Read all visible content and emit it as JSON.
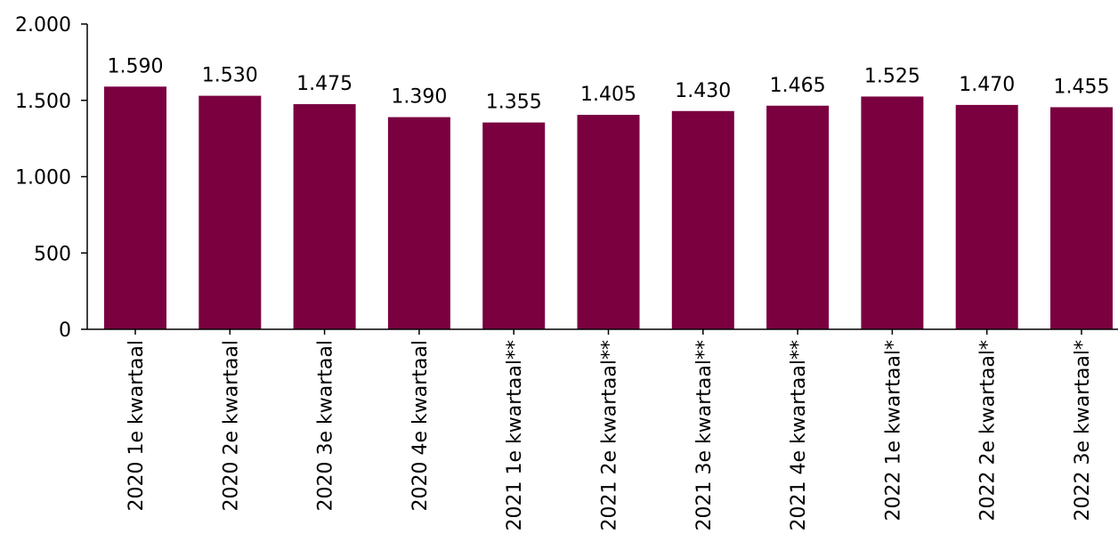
{
  "chart_data": {
    "type": "bar",
    "title": "",
    "xlabel": "",
    "ylabel": "",
    "ylim": [
      0,
      2000
    ],
    "yticks": [
      0,
      500,
      1000,
      1500,
      2000
    ],
    "ytick_labels": [
      "0",
      "500",
      "1.000",
      "1.500",
      "2.000"
    ],
    "grid": false,
    "legend": "none",
    "bar_color": "#7a0040",
    "categories": [
      "2020 1e kwartaal",
      "2020 2e kwartaal",
      "2020 3e kwartaal",
      "2020 4e kwartaal",
      "2021 1e kwartaal**",
      "2021 2e kwartaal**",
      "2021 3e kwartaal**",
      "2021 4e kwartaal**",
      "2022 1e kwartaal*",
      "2022 2e kwartaal*",
      "2022 3e kwartaal*"
    ],
    "values": [
      1590,
      1530,
      1475,
      1390,
      1355,
      1405,
      1430,
      1465,
      1525,
      1470,
      1455
    ],
    "value_labels": [
      "1.590",
      "1.530",
      "1.475",
      "1.390",
      "1.355",
      "1.405",
      "1.430",
      "1.465",
      "1.525",
      "1.470",
      "1.455"
    ]
  }
}
